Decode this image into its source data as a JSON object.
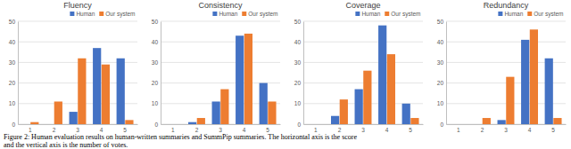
{
  "chart_data": [
    {
      "type": "bar",
      "title": "Fluency",
      "categories": [
        "1",
        "2",
        "3",
        "4",
        "5"
      ],
      "series": [
        {
          "name": "Human",
          "color": "#4472c4",
          "values": [
            0,
            0,
            6,
            37,
            32
          ]
        },
        {
          "name": "Our system",
          "color": "#ed7d31",
          "values": [
            1,
            11,
            32,
            29,
            2
          ]
        }
      ],
      "ylim": [
        0,
        50
      ],
      "yticks": [
        0,
        10,
        20,
        30,
        40,
        50
      ],
      "grid": true,
      "legend": "upper right"
    },
    {
      "type": "bar",
      "title": "Consistency",
      "categories": [
        "1",
        "2",
        "3",
        "4",
        "5"
      ],
      "series": [
        {
          "name": "Human",
          "color": "#4472c4",
          "values": [
            0,
            1,
            11,
            43,
            20
          ]
        },
        {
          "name": "Our system",
          "color": "#ed7d31",
          "values": [
            0,
            3,
            17,
            44,
            11
          ]
        }
      ],
      "ylim": [
        0,
        50
      ],
      "yticks": [
        0,
        10,
        20,
        30,
        40,
        50
      ],
      "grid": true,
      "legend": "upper right"
    },
    {
      "type": "bar",
      "title": "Coverage",
      "categories": [
        "1",
        "2",
        "3",
        "4",
        "5"
      ],
      "series": [
        {
          "name": "Human",
          "color": "#4472c4",
          "values": [
            0,
            4,
            17,
            48,
            10
          ]
        },
        {
          "name": "Our system",
          "color": "#ed7d31",
          "values": [
            0,
            12,
            26,
            34,
            3
          ]
        }
      ],
      "ylim": [
        0,
        50
      ],
      "yticks": [
        0,
        10,
        20,
        30,
        40,
        50
      ],
      "grid": true,
      "legend": "upper right"
    },
    {
      "type": "bar",
      "title": "Redundancy",
      "categories": [
        "1",
        "2",
        "3",
        "4",
        "5"
      ],
      "series": [
        {
          "name": "Human",
          "color": "#4472c4",
          "values": [
            0,
            0,
            2,
            41,
            32
          ]
        },
        {
          "name": "Our system",
          "color": "#ed7d31",
          "values": [
            0,
            3,
            23,
            46,
            3
          ]
        }
      ],
      "ylim": [
        0,
        50
      ],
      "yticks": [
        0,
        10,
        20,
        30,
        40,
        50
      ],
      "grid": true,
      "legend": "upper right"
    }
  ],
  "caption": [
    "Figure 2: Human evaluation results on human-written summaries and SummPip summaries. The horizontal axis is the score",
    "and the vertical axis is the number of votes."
  ]
}
